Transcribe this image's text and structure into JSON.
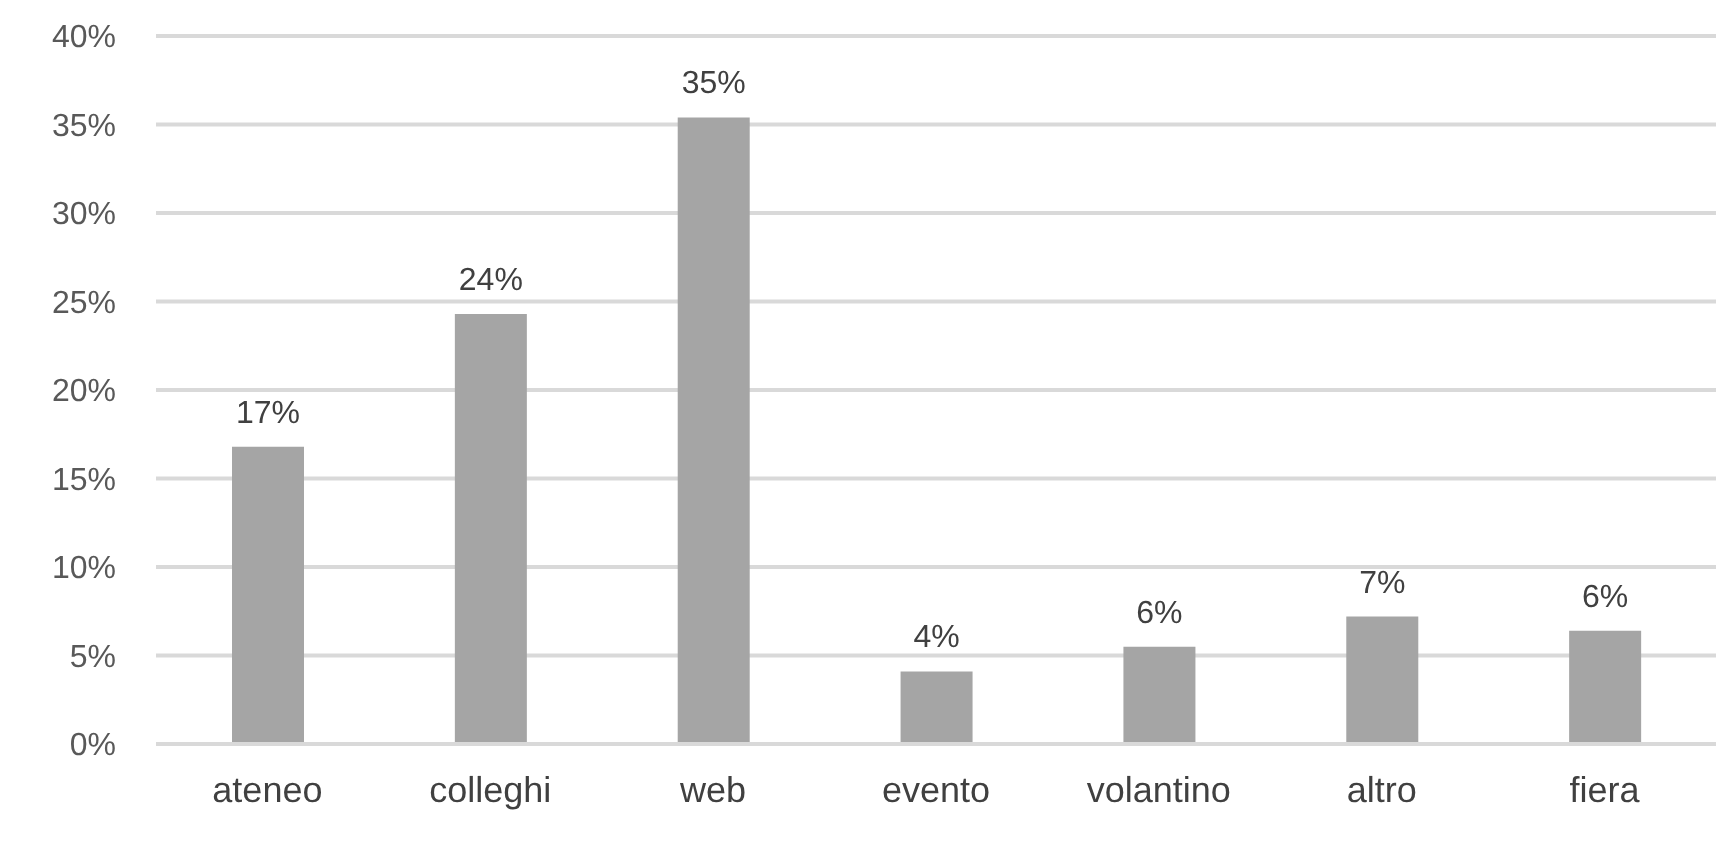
{
  "chart_data": {
    "type": "bar",
    "categories": [
      "ateneo",
      "colleghi",
      "web",
      "evento",
      "volantino",
      "altro",
      "fiera"
    ],
    "values": [
      16.8,
      24.3,
      35.4,
      4.1,
      5.5,
      7.2,
      6.4
    ],
    "value_labels": [
      "17%",
      "24%",
      "35%",
      "4%",
      "6%",
      "7%",
      "6%"
    ],
    "color": "#a5a5a5",
    "ylim": [
      0,
      40
    ],
    "yticks": [
      {
        "value": 0,
        "label": "0%"
      },
      {
        "value": 5,
        "label": "5%"
      },
      {
        "value": 10,
        "label": "10%"
      },
      {
        "value": 15,
        "label": "15%"
      },
      {
        "value": 20,
        "label": "20%"
      },
      {
        "value": 25,
        "label": "25%"
      },
      {
        "value": 30,
        "label": "30%"
      },
      {
        "value": 35,
        "label": "35%"
      },
      {
        "value": 40,
        "label": "40%"
      }
    ],
    "grid": "y",
    "legend": false
  }
}
